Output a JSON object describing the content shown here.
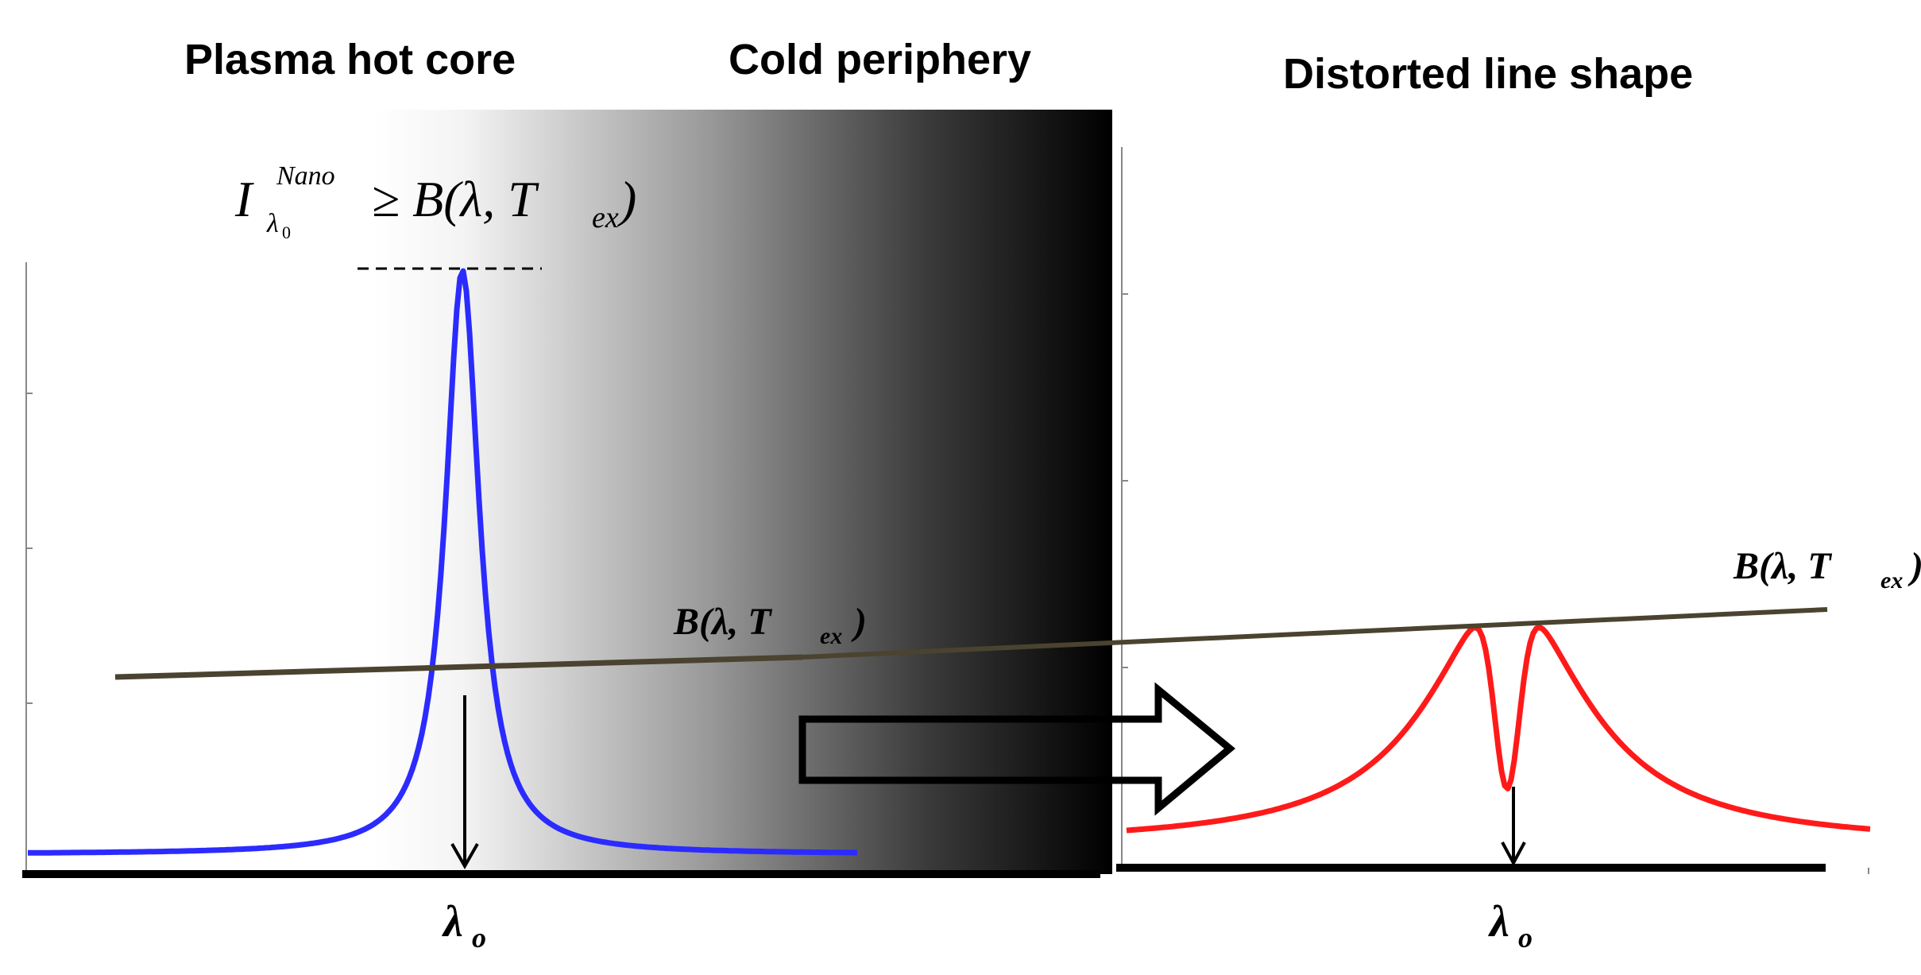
{
  "headings": {
    "hot_core": "Plasma hot core",
    "cold_periphery": "Cold periphery",
    "distorted": "Distorted line shape"
  },
  "equations": {
    "peak_I": "I",
    "peak_sup": "Nano",
    "peak_sub": "λ",
    "peak_sub_index": "0",
    "peak_relation": "≥ B(λ, T",
    "peak_relation_sub": "ex",
    "peak_close": ")",
    "planck_B": "B(λ, T",
    "planck_sub": "ex",
    "planck_close": ")"
  },
  "axis_labels": {
    "left_lambda": "λ",
    "left_lambda_sub": "o",
    "right_lambda": "λ",
    "right_lambda_sub": "o"
  },
  "colors": {
    "left_profile": "#2b2bff",
    "right_profile": "#ff1a1a",
    "planck_line": "#4a4330",
    "gradient_dark": "#000000",
    "gradient_light": "#ffffff"
  },
  "icons": {
    "arrow": "outline-right-arrow",
    "down_arrow": "down-arrow"
  }
}
